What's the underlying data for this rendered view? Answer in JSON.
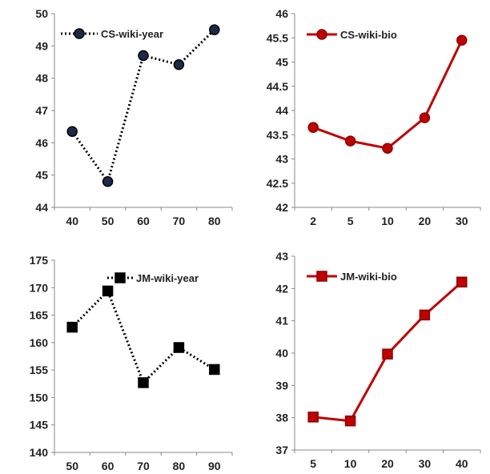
{
  "chart_data": [
    {
      "type": "line",
      "title": "",
      "xlabel": "",
      "ylabel": "",
      "categories": [
        "40",
        "50",
        "60",
        "70",
        "80"
      ],
      "series": [
        {
          "name": "CS-wiki-year",
          "values": [
            46.35,
            44.8,
            48.7,
            48.42,
            49.5
          ]
        }
      ],
      "ylim": [
        44,
        50
      ],
      "yticks": [
        "44",
        "45",
        "46",
        "47",
        "48",
        "49",
        "50"
      ],
      "line_style": "dotted",
      "marker": "circle",
      "color": "#000000",
      "marker_fill": "#1c2a4a",
      "legend_position": "top-left",
      "grid": false
    },
    {
      "type": "line",
      "title": "",
      "xlabel": "",
      "ylabel": "",
      "categories": [
        "2",
        "5",
        "10",
        "20",
        "30"
      ],
      "series": [
        {
          "name": "CS-wiki-bio",
          "values": [
            43.65,
            43.37,
            43.22,
            43.85,
            45.45
          ]
        }
      ],
      "ylim": [
        42,
        46
      ],
      "yticks": [
        "42",
        "42.5",
        "43",
        "43.5",
        "44",
        "44.5",
        "45",
        "45.5",
        "46"
      ],
      "line_style": "solid",
      "marker": "circle",
      "color": "#c00000",
      "marker_fill": "#c00000",
      "legend_position": "top-left",
      "grid": false
    },
    {
      "type": "line",
      "title": "",
      "xlabel": "",
      "ylabel": "",
      "categories": [
        "50",
        "60",
        "70",
        "80",
        "90"
      ],
      "series": [
        {
          "name": "JM-wiki-year",
          "values": [
            162.8,
            169.4,
            152.7,
            159.1,
            155.1
          ]
        }
      ],
      "ylim": [
        140,
        175
      ],
      "yticks": [
        "140",
        "145",
        "150",
        "155",
        "160",
        "165",
        "170",
        "175"
      ],
      "line_style": "dotted",
      "marker": "square",
      "color": "#000000",
      "marker_fill": "#000000",
      "legend_position": "top-right",
      "grid": false
    },
    {
      "type": "line",
      "title": "",
      "xlabel": "",
      "ylabel": "",
      "categories": [
        "5",
        "10",
        "20",
        "30",
        "40"
      ],
      "series": [
        {
          "name": "JM-wiki-bio",
          "values": [
            38.02,
            37.9,
            39.97,
            41.18,
            42.2
          ]
        }
      ],
      "ylim": [
        37,
        43
      ],
      "yticks": [
        "37",
        "38",
        "39",
        "40",
        "41",
        "42",
        "43"
      ],
      "line_style": "solid",
      "marker": "square",
      "color": "#c00000",
      "marker_fill": "#c00000",
      "legend_position": "top-left",
      "grid": false
    }
  ]
}
